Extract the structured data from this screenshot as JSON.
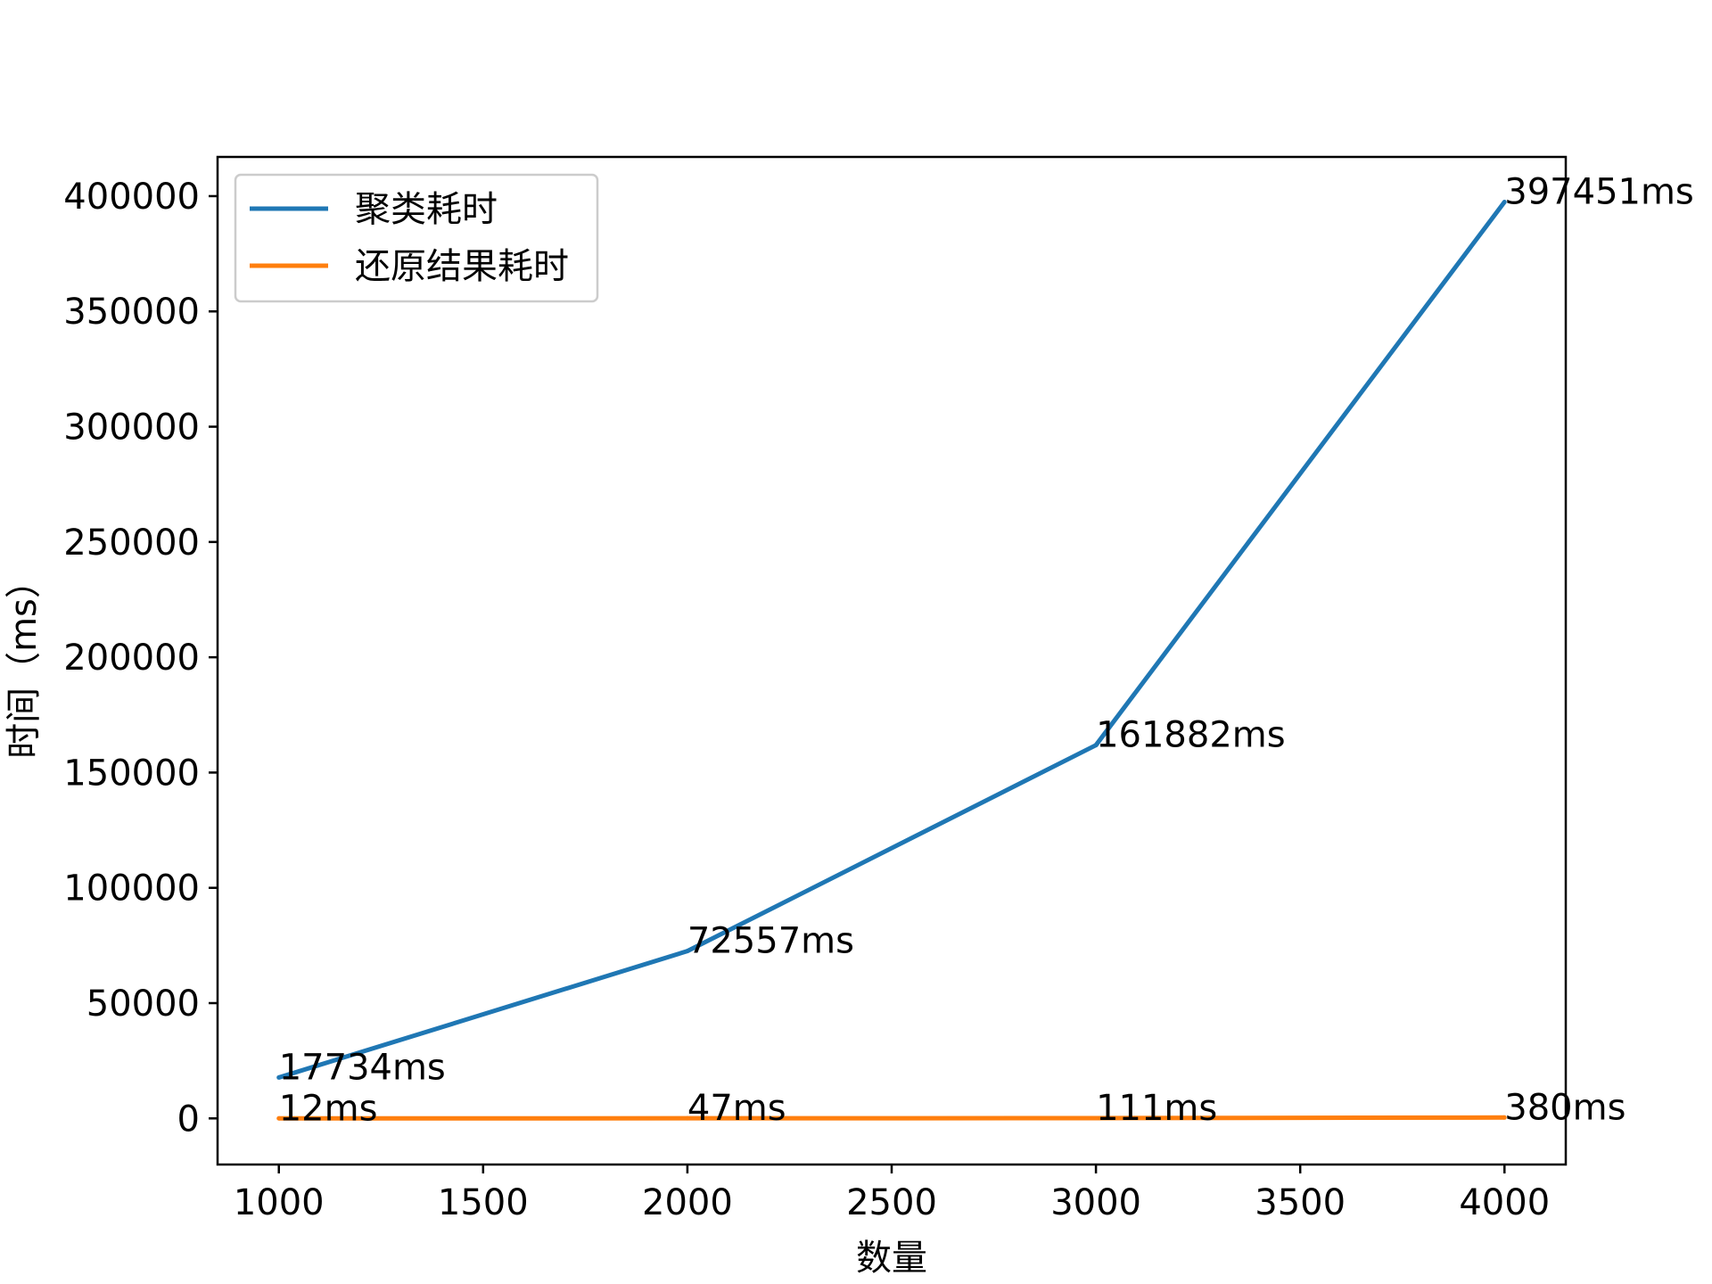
{
  "chart_data": {
    "type": "line",
    "title": "",
    "xlabel": "数量",
    "ylabel": "时间（ms）",
    "x": [
      1000,
      2000,
      3000,
      4000
    ],
    "xlim": [
      850,
      4150
    ],
    "ylim": [
      -20000,
      417000
    ],
    "xticks": [
      1000,
      1500,
      2000,
      2500,
      3000,
      3500,
      4000
    ],
    "yticks": [
      0,
      50000,
      100000,
      150000,
      200000,
      250000,
      300000,
      350000,
      400000
    ],
    "grid": false,
    "legend_position": "top-left",
    "series": [
      {
        "name": "聚类耗时",
        "color": "#1f77b4",
        "values": [
          17734,
          72557,
          161882,
          397451
        ],
        "labels": [
          "17734ms",
          "72557ms",
          "161882ms",
          "397451ms"
        ]
      },
      {
        "name": "还原结果耗时",
        "color": "#ff7f0e",
        "values": [
          12,
          47,
          111,
          380
        ],
        "labels": [
          "12ms",
          "47ms",
          "111ms",
          "380ms"
        ]
      }
    ]
  }
}
